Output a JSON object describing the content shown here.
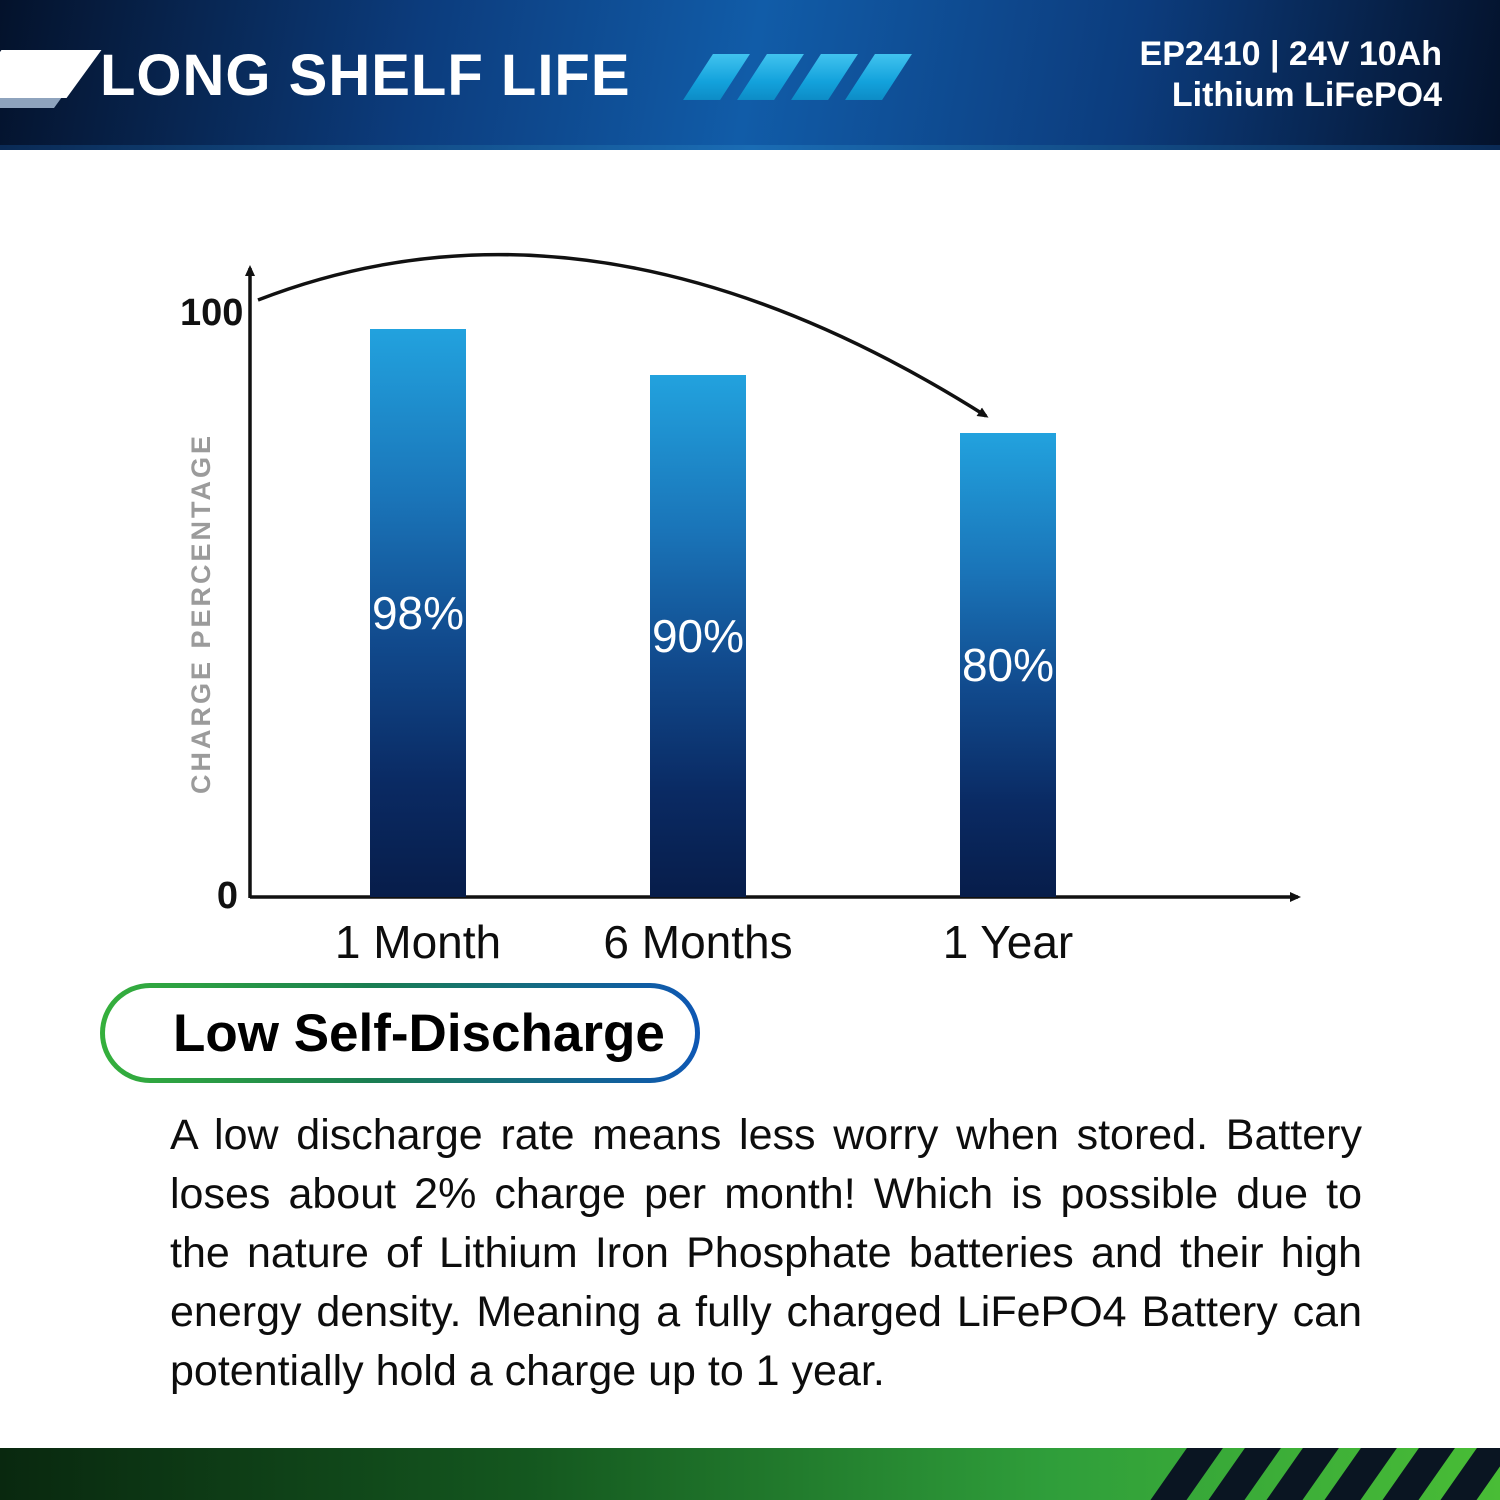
{
  "header": {
    "title": "LONG SHELF LIFE",
    "model": "EP2410 | 24V 10Ah",
    "chemistry": "Lithium LiFePO4"
  },
  "chart_data": {
    "type": "bar",
    "title": "",
    "categories": [
      "1 Month",
      "6 Months",
      "1 Year"
    ],
    "values": [
      98,
      90,
      80
    ],
    "value_labels": [
      "98%",
      "90%",
      "80%"
    ],
    "xlabel": "",
    "ylabel": "CHARGE PERCENTAGE",
    "yticks": [
      0,
      100
    ],
    "ylim": [
      0,
      100
    ],
    "grid": false,
    "legend": "none",
    "annotation": "curved arrow from the 100 mark descending to the 1 Year bar"
  },
  "badge": {
    "label": "Low Self-Discharge"
  },
  "description": {
    "paragraph": "A low discharge rate means less worry when stored. Battery loses about 2% charge per month! Which is possible due to the nature of Lithium Iron Phosphate batteries and their high energy density. Meaning a fully charged LiFePO4 Battery can potentially hold a charge up to 1 year."
  },
  "icons": {
    "header_slash_icon": "white-diagonal-slash",
    "header_stripes_icon": "four-cyan-diagonal-stripes",
    "footer_hazard_icon": "dark-diagonal-stripes"
  },
  "colors": {
    "header_navy": "#0c3c7d",
    "accent_cyan": "#13a2dc",
    "bar_top": "#22a2de",
    "bar_bottom": "#071d4a",
    "pill_border_left": "#35b03c",
    "pill_border_right": "#0e57b4",
    "footer_green": "#2f9e3a",
    "axis_black": "#111111",
    "ylabel_gray": "#9b9b9b"
  }
}
